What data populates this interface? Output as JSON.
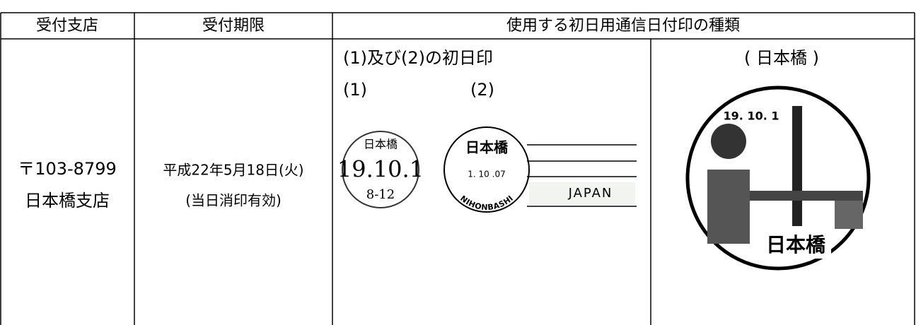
{
  "table": {
    "headers": [
      "受付支店",
      "受付期限",
      "使用する初日用通信日付印の種類"
    ],
    "branch": [
      "〒103-8799",
      "日本橋支店"
    ],
    "deadline": [
      "平成22年5月18日(火)",
      "(当日消印有効)"
    ],
    "stamps": {
      "caption": "(1)及び(2)の初日印",
      "label1": "(1)",
      "label2": "(2)",
      "label3": "( 日本橋 )",
      "stamp1": {
        "name": "日本橋",
        "date": "19.10.1",
        "time": "8-12"
      },
      "stamp2": {
        "name": "日本橋",
        "date": "1. 10 .07",
        "romaji": "NIHONBASHI"
      },
      "country": "JAPAN",
      "stamp3": {
        "date": "19. 10. 1",
        "name": "日本橋"
      }
    }
  }
}
